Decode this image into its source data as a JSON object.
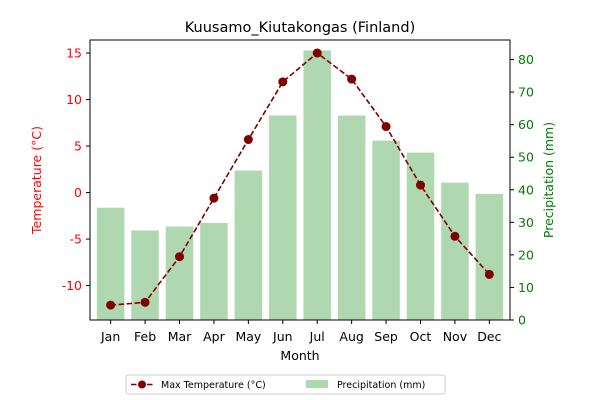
{
  "chart_data": {
    "type": "bar",
    "title": "Kuusamo_Kiutakongas (Finland)",
    "xlabel": "Month",
    "ylabel_left": "Temperature (°C)",
    "ylabel_right": "Precipitation (mm)",
    "categories": [
      "Jan",
      "Feb",
      "Mar",
      "Apr",
      "May",
      "Jun",
      "Jul",
      "Aug",
      "Sep",
      "Oct",
      "Nov",
      "Dec"
    ],
    "series": [
      {
        "name": "Max Temperature (°C)",
        "type": "line",
        "axis": "left",
        "values": [
          -12.1,
          -11.8,
          -6.9,
          -0.6,
          5.7,
          11.9,
          15.0,
          12.2,
          7.1,
          0.8,
          -4.7,
          -8.8
        ],
        "color": "#800000"
      },
      {
        "name": "Precipitation (mm)",
        "type": "bar",
        "axis": "right",
        "values": [
          34.5,
          27.5,
          28.7,
          29.8,
          45.9,
          62.8,
          82.8,
          62.8,
          55.1,
          51.4,
          42.2,
          38.7
        ],
        "color": "#b0d8b0"
      }
    ],
    "ylim_left": [
      -13.7,
      16.4
    ],
    "ylim_right": [
      0,
      86.0
    ],
    "yticks_left": [
      -10,
      -5,
      0,
      5,
      10,
      15
    ],
    "yticks_right": [
      0,
      10,
      20,
      30,
      40,
      50,
      60,
      70,
      80
    ],
    "left_axis_color": "#ff0000",
    "right_axis_color": "#008000",
    "grid": false,
    "legend_position": "bottom-center"
  }
}
